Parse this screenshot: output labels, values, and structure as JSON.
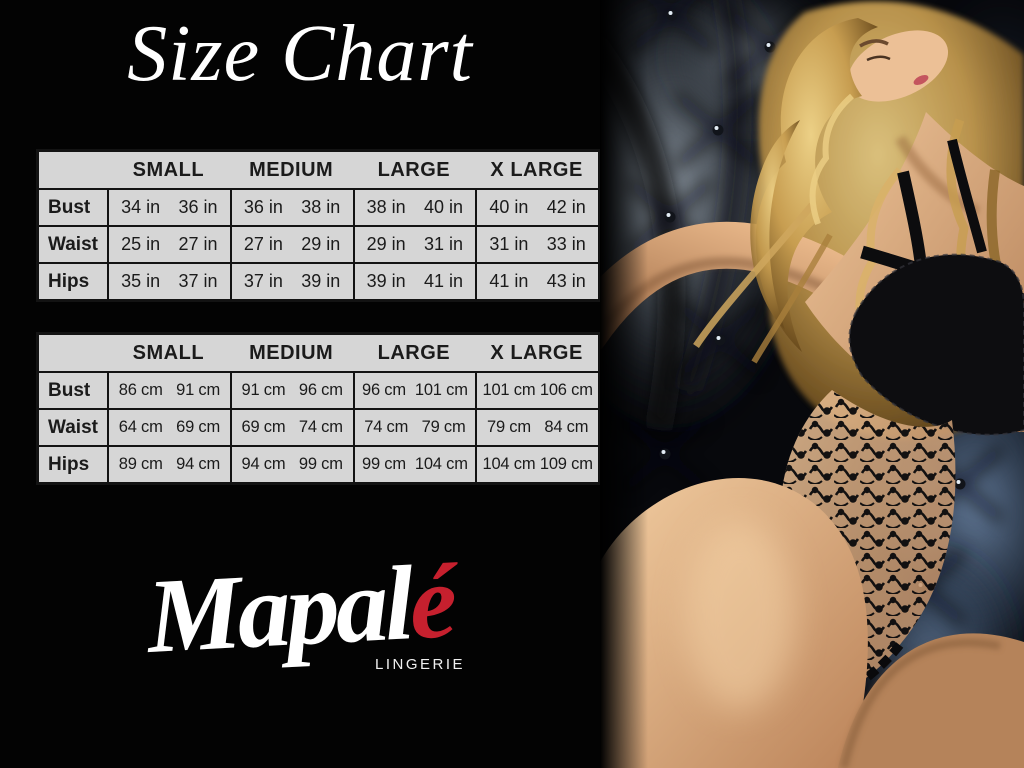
{
  "title": "Size Chart",
  "brand": {
    "script_main": "Mapal",
    "script_accent": "é",
    "subtitle": "LINGERIE",
    "accent_color": "#c6202e"
  },
  "chart_data": [
    {
      "type": "table",
      "unit": "in",
      "columns": [
        "SMALL",
        "MEDIUM",
        "LARGE",
        "X LARGE"
      ],
      "row_labels": [
        "Bust",
        "Waist",
        "Hips"
      ],
      "rows": [
        [
          [
            "34 in",
            "36 in"
          ],
          [
            "36 in",
            "38 in"
          ],
          [
            "38 in",
            "40 in"
          ],
          [
            "40 in",
            "42 in"
          ]
        ],
        [
          [
            "25 in",
            "27 in"
          ],
          [
            "27 in",
            "29 in"
          ],
          [
            "29 in",
            "31 in"
          ],
          [
            "31 in",
            "33 in"
          ]
        ],
        [
          [
            "35 in",
            "37 in"
          ],
          [
            "37 in",
            "39 in"
          ],
          [
            "39 in",
            "41 in"
          ],
          [
            "41 in",
            "43 in"
          ]
        ]
      ]
    },
    {
      "type": "table",
      "unit": "cm",
      "columns": [
        "SMALL",
        "MEDIUM",
        "LARGE",
        "X LARGE"
      ],
      "row_labels": [
        "Bust",
        "Waist",
        "Hips"
      ],
      "rows": [
        [
          [
            "86 cm",
            "91 cm"
          ],
          [
            "91 cm",
            "96 cm"
          ],
          [
            "96 cm",
            "101 cm"
          ],
          [
            "101 cm",
            "106 cm"
          ]
        ],
        [
          [
            "64 cm",
            "69 cm"
          ],
          [
            "69 cm",
            "74 cm"
          ],
          [
            "74 cm",
            "79 cm"
          ],
          [
            "79 cm",
            "84 cm"
          ]
        ],
        [
          [
            "89 cm",
            "94 cm"
          ],
          [
            "94 cm",
            "99 cm"
          ],
          [
            "99 cm",
            "104 cm"
          ],
          [
            "104 cm",
            "109 cm"
          ]
        ]
      ]
    }
  ],
  "photo": {
    "description": "Model with blonde curls in black lace bodysuit leaning against dark tufted upholstery"
  }
}
